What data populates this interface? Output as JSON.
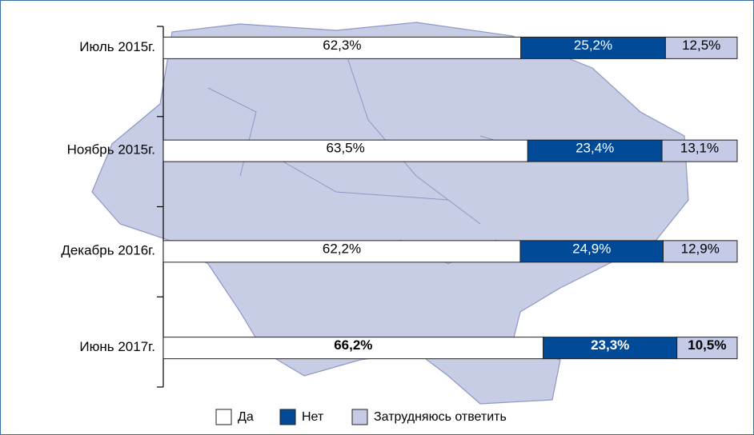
{
  "chart_data": {
    "type": "stacked-bar-horizontal",
    "categories": [
      "Июль 2015г.",
      "Ноябрь 2015г.",
      "Декабрь 2016г.",
      "Июнь 2017г."
    ],
    "series": [
      {
        "name": "Да",
        "color": "#ffffff",
        "values": [
          62.3,
          63.5,
          62.2,
          66.2
        ],
        "value_labels": [
          "62,3%",
          "63,5%",
          "62,2%",
          "66,2%"
        ]
      },
      {
        "name": "Нет",
        "color": "#004a97",
        "values": [
          25.2,
          23.4,
          24.9,
          23.3
        ],
        "value_labels": [
          "25,2%",
          "23,4%",
          "24,9%",
          "23,3%"
        ]
      },
      {
        "name": "Затрудняюсь ответить",
        "color": "#c5cae6",
        "values": [
          12.5,
          13.1,
          12.9,
          10.5
        ],
        "value_labels": [
          "12,5%",
          "13,1%",
          "12,9%",
          "10,5%"
        ]
      }
    ],
    "xlim": [
      0,
      100
    ]
  }
}
